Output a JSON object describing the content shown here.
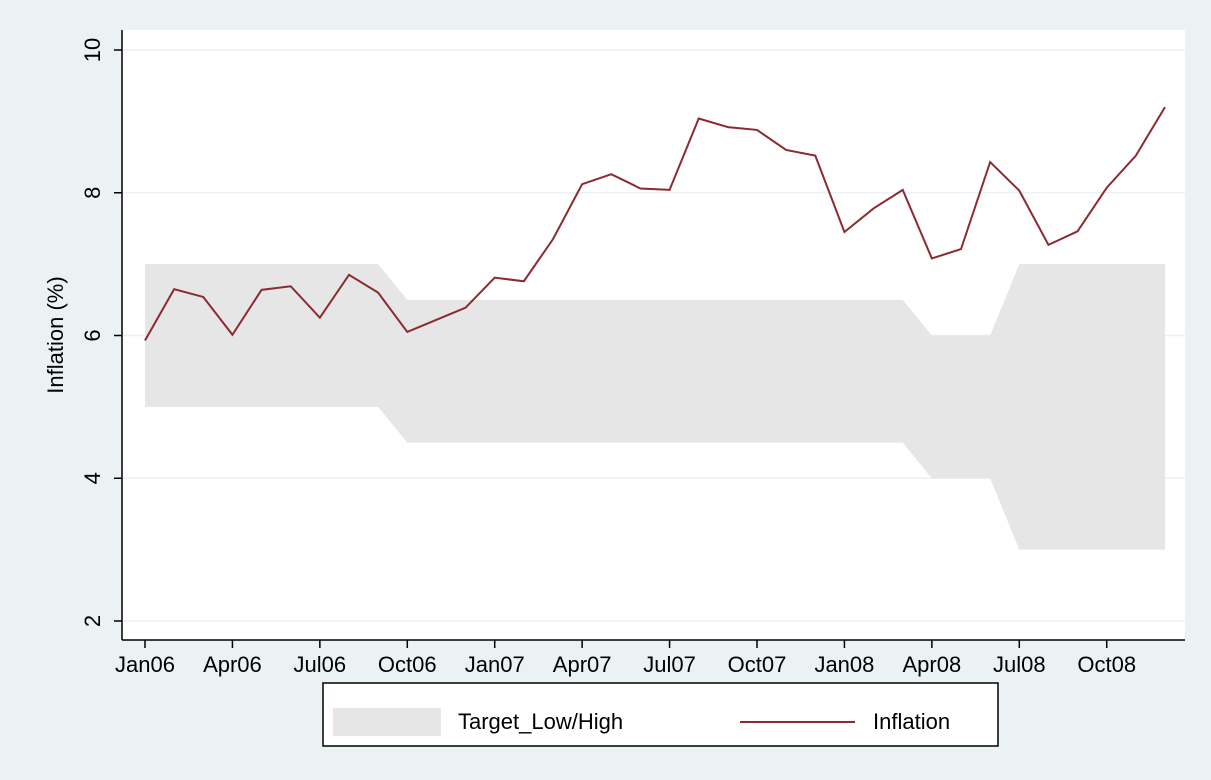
{
  "chart_data": {
    "type": "line",
    "y_label": "Inflation (%)",
    "categories": [
      "Jan06",
      null,
      null,
      "Apr06",
      null,
      null,
      "Jul06",
      null,
      null,
      "Oct06",
      null,
      null,
      "Jan07",
      null,
      null,
      "Apr07",
      null,
      null,
      "Jul07",
      null,
      null,
      "Oct07",
      null,
      null,
      "Jan08",
      null,
      null,
      "Apr08",
      null,
      null,
      "Jul08",
      null,
      null,
      "Oct08",
      null,
      null
    ],
    "series": [
      {
        "name": "Target_Low/High",
        "color": "#e6e6e6",
        "low": [
          5,
          5,
          5,
          5,
          5,
          5,
          5,
          5,
          5,
          4.5,
          4.5,
          4.5,
          4.5,
          4.5,
          4.5,
          4.5,
          4.5,
          4.5,
          4.5,
          4.5,
          4.5,
          4.5,
          4.5,
          4.5,
          4.5,
          4.5,
          4.5,
          4,
          4,
          4,
          3,
          3,
          3,
          3,
          3,
          3
        ],
        "high": [
          7,
          7,
          7,
          7,
          7,
          7,
          7,
          7,
          7,
          6.5,
          6.5,
          6.5,
          6.5,
          6.5,
          6.5,
          6.5,
          6.5,
          6.5,
          6.5,
          6.5,
          6.5,
          6.5,
          6.5,
          6.5,
          6.5,
          6.5,
          6.5,
          6,
          6,
          6,
          7,
          7,
          7,
          7,
          7,
          7
        ]
      },
      {
        "name": "Inflation",
        "color": "#8b2a2f",
        "values": [
          5.93,
          6.65,
          6.54,
          6.01,
          6.64,
          6.69,
          6.25,
          6.85,
          6.6,
          6.05,
          6.22,
          6.39,
          6.81,
          6.76,
          7.35,
          8.12,
          8.26,
          8.06,
          8.04,
          9.04,
          8.92,
          8.88,
          8.6,
          8.52,
          7.45,
          7.78,
          8.04,
          7.08,
          7.21,
          8.43,
          8.03,
          7.27,
          7.46,
          8.07,
          8.52,
          9.2
        ]
      }
    ],
    "ylim": [
      2,
      10
    ],
    "yticks": [
      2,
      4,
      6,
      8,
      10
    ],
    "grid": true
  }
}
